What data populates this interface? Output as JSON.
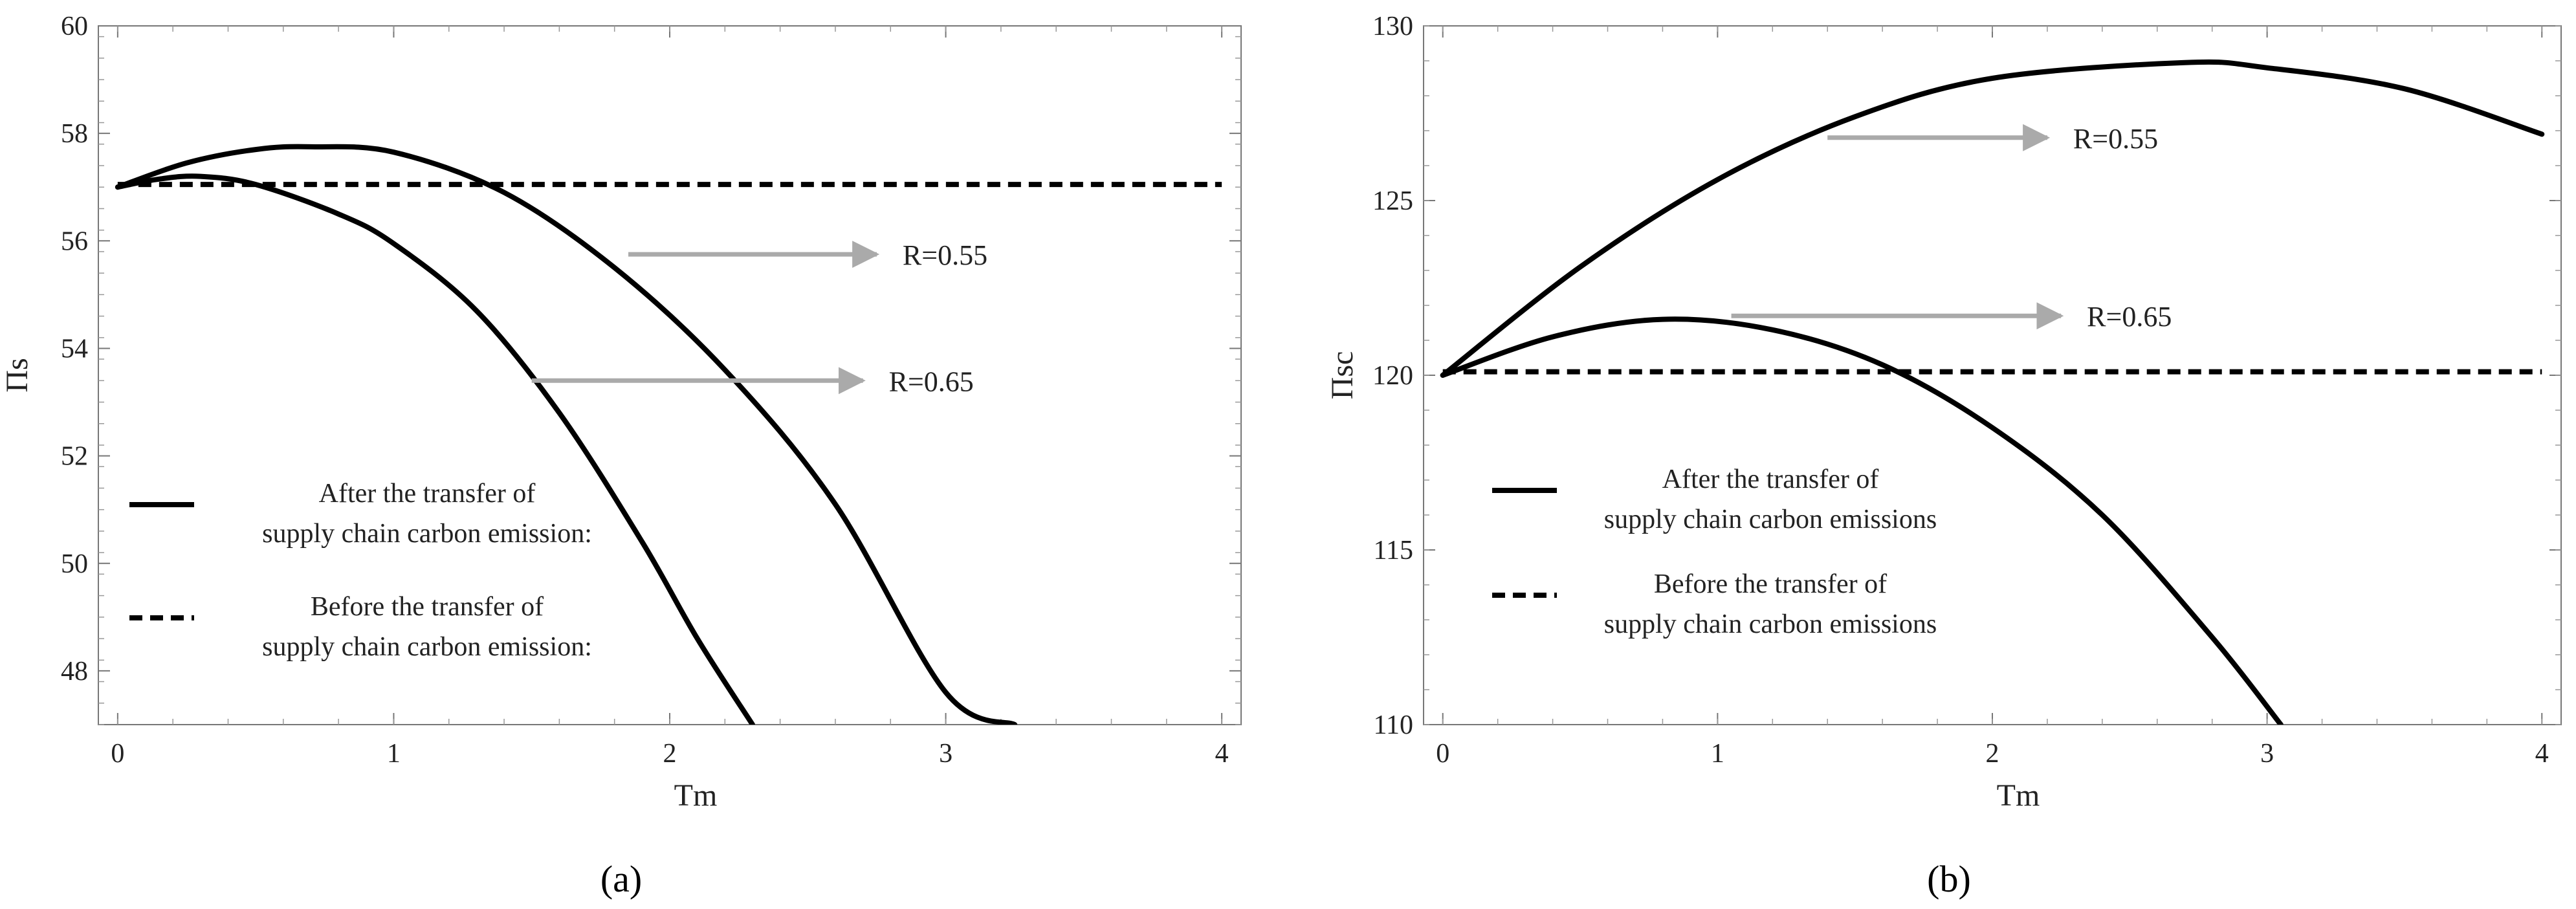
{
  "chart_data": [
    {
      "type": "line",
      "panel_label": "a",
      "xlabel": "Tm",
      "ylabel": "Πs",
      "xlim": [
        -0.07,
        4.07
      ],
      "ylim": [
        47,
        60
      ],
      "xticks": [
        0,
        1,
        2,
        3,
        4
      ],
      "yticks": [
        48,
        50,
        52,
        54,
        56,
        58,
        60
      ],
      "series": [
        {
          "curve": "R=0.55",
          "style": "solid",
          "x": [
            0,
            0.25,
            0.5,
            0.7,
            1.0,
            1.4,
            1.8,
            2.2,
            2.6,
            3.0,
            3.25
          ],
          "y": [
            57.0,
            57.45,
            57.7,
            57.75,
            57.65,
            56.9,
            55.5,
            53.6,
            51.1,
            47.6,
            47.0
          ]
        },
        {
          "curve": "R=0.65",
          "style": "solid",
          "x": [
            0,
            0.15,
            0.3,
            0.5,
            0.8,
            1.0,
            1.3,
            1.6,
            1.9,
            2.1,
            2.3
          ],
          "y": [
            57.0,
            57.15,
            57.2,
            57.05,
            56.5,
            55.95,
            54.7,
            52.8,
            50.4,
            48.6,
            47.0
          ]
        },
        {
          "curve": "before",
          "style": "dashed",
          "x": [
            0,
            4
          ],
          "y": [
            57.05,
            57.05
          ]
        }
      ],
      "annotations": [
        {
          "text": "R=0.55",
          "arrow_from": [
            1.85,
            55.75
          ],
          "arrow_to": [
            2.75,
            55.75
          ]
        },
        {
          "text": "R=0.65",
          "arrow_from": [
            1.5,
            53.4
          ],
          "arrow_to": [
            2.7,
            53.4
          ]
        }
      ],
      "legend": {
        "placement": "lower-left",
        "entries": [
          {
            "style": "solid",
            "lines": [
              "After the transfer of",
              "supply chain carbon emission:"
            ]
          },
          {
            "style": "dashed",
            "lines": [
              "Before the transfer of",
              "supply chain carbon emission:"
            ]
          }
        ]
      }
    },
    {
      "type": "line",
      "panel_label": "b",
      "xlabel": "Tm",
      "ylabel": "Πsc",
      "xlim": [
        -0.07,
        4.07
      ],
      "ylim": [
        110,
        130
      ],
      "xticks": [
        0,
        1,
        2,
        3,
        4
      ],
      "yticks": [
        110,
        115,
        120,
        125,
        130
      ],
      "series": [
        {
          "curve": "R=0.55",
          "style": "solid",
          "x": [
            0,
            0.5,
            1.0,
            1.5,
            2.0,
            2.7,
            3.0,
            3.5,
            4.0
          ],
          "y": [
            120.0,
            123.1,
            125.6,
            127.4,
            128.5,
            128.95,
            128.8,
            128.2,
            126.9
          ]
        },
        {
          "curve": "R=0.65",
          "style": "solid",
          "x": [
            0,
            0.4,
            0.8,
            1.2,
            1.6,
            2.0,
            2.4,
            2.8,
            3.05
          ],
          "y": [
            120.0,
            121.1,
            121.6,
            121.3,
            120.3,
            118.5,
            116.0,
            112.5,
            110.0
          ]
        },
        {
          "curve": "before",
          "style": "dashed",
          "x": [
            0,
            4
          ],
          "y": [
            120.1,
            120.1
          ]
        }
      ],
      "annotations": [
        {
          "text": "R=0.55",
          "arrow_from": [
            1.4,
            126.8
          ],
          "arrow_to": [
            2.2,
            126.8
          ]
        },
        {
          "text": "R=0.65",
          "arrow_from": [
            1.05,
            121.7
          ],
          "arrow_to": [
            2.25,
            121.7
          ]
        }
      ],
      "legend": {
        "placement": "lower-left",
        "entries": [
          {
            "style": "solid",
            "lines": [
              "After the transfer of",
              "supply chain carbon emissions"
            ]
          },
          {
            "style": "dashed",
            "lines": [
              "Before the transfer of",
              "supply chain carbon emissions"
            ]
          }
        ]
      }
    }
  ],
  "captions": [
    "(a)",
    "(b)"
  ]
}
